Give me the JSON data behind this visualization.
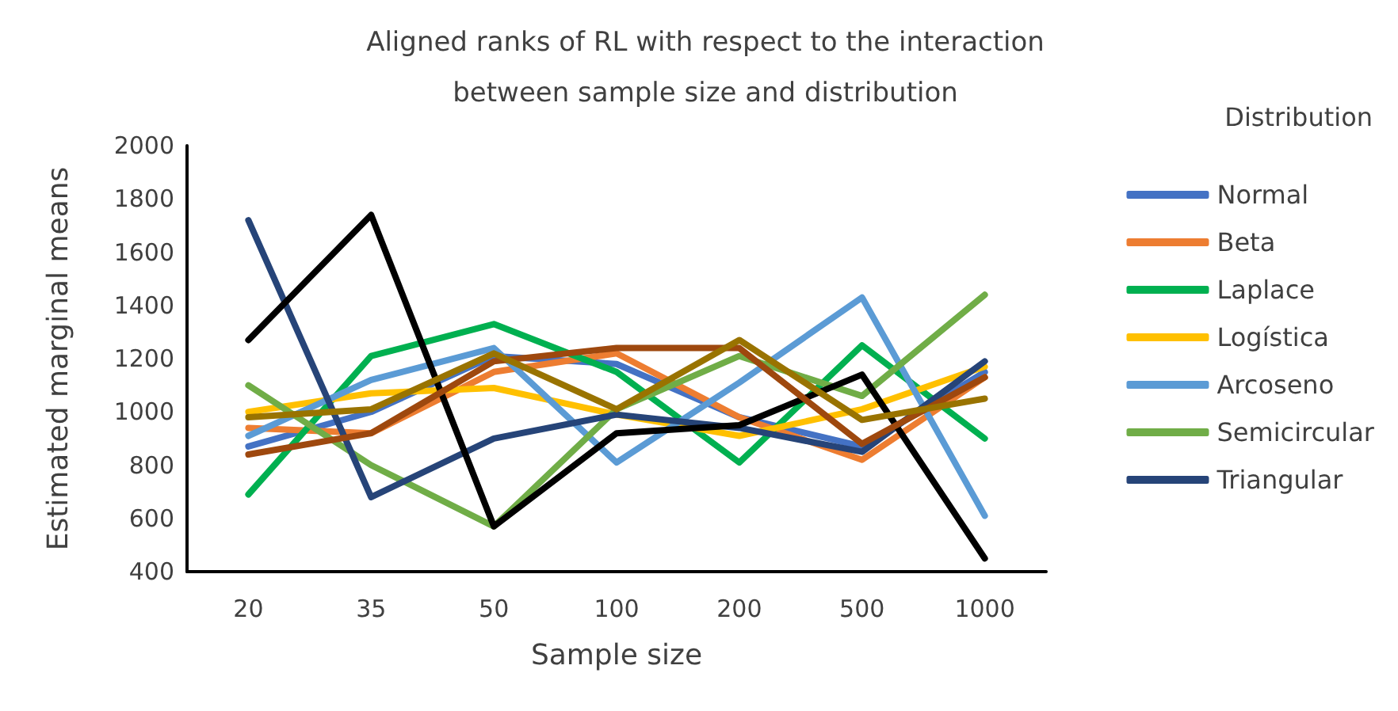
{
  "chart_data": {
    "type": "line",
    "title": "Aligned ranks of RL with respect to the interaction\nbetween sample size and distribution",
    "xlabel": "Sample size",
    "ylabel": "Estimated marginal means",
    "legend_title": "Distribution",
    "categories": [
      "20",
      "35",
      "50",
      "100",
      "200",
      "500",
      "1000"
    ],
    "series": [
      {
        "name": "Normal",
        "color": "#4472c4",
        "values": [
          870,
          1000,
          1210,
          1180,
          980,
          870,
          1150
        ]
      },
      {
        "name": "Beta",
        "color": "#ed7d31",
        "values": [
          940,
          920,
          1150,
          1220,
          980,
          820,
          1130
        ]
      },
      {
        "name": "Laplace",
        "color": "#00b050",
        "values": [
          690,
          1210,
          1330,
          1150,
          810,
          1250,
          900
        ]
      },
      {
        "name": "Logística",
        "color": "#ffc000",
        "values": [
          1000,
          1070,
          1090,
          990,
          910,
          1010,
          1170
        ]
      },
      {
        "name": "Arcoseno",
        "color": "#5b9bd5",
        "values": [
          910,
          1120,
          1240,
          810,
          1110,
          1430,
          610
        ]
      },
      {
        "name": "Semicircular",
        "color": "#70ad47",
        "values": [
          1100,
          800,
          570,
          1010,
          1210,
          1060,
          1440
        ]
      },
      {
        "name": "Triangular",
        "color": "#264478",
        "values": [
          1720,
          680,
          900,
          990,
          940,
          850,
          1190
        ]
      },
      {
        "color": "#000000",
        "values": [
          1270,
          1740,
          570,
          920,
          950,
          1140,
          450
        ]
      },
      {
        "color": "#9e480e",
        "values": [
          840,
          920,
          1190,
          1240,
          1240,
          880,
          1130
        ]
      },
      {
        "color": "#997300",
        "values": [
          980,
          1010,
          1220,
          1010,
          1270,
          970,
          1050
        ]
      }
    ],
    "ylim": [
      400,
      2000
    ],
    "yticks": [
      400,
      600,
      800,
      1000,
      1200,
      1400,
      1600,
      1800,
      2000
    ],
    "grid": false,
    "legend": "right",
    "marker": "none",
    "line_style": "solid"
  }
}
